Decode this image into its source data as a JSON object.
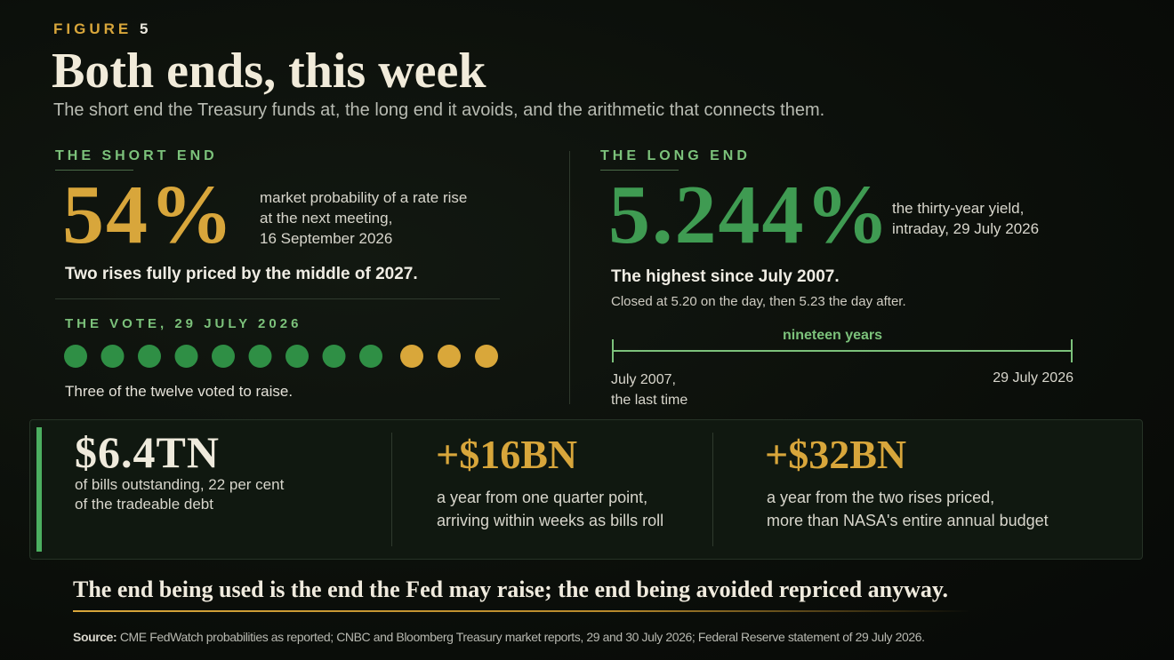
{
  "header": {
    "figure_label": "FIGURE",
    "figure_number": "5",
    "title": "Both ends, this week",
    "subtitle": "The short end the Treasury funds at, the long end it avoids, and the arithmetic that connects them."
  },
  "short_end": {
    "heading": "THE SHORT END",
    "value": "54%",
    "note": [
      "market probability of a rate rise",
      "at the next meeting,",
      "16 September 2026"
    ],
    "summary": "Two rises fully priced by the middle of 2027.",
    "vote": {
      "heading": "THE VOTE, 29 JULY 2026",
      "caption": "Three of the twelve voted to raise."
    }
  },
  "long_end": {
    "heading": "THE LONG END",
    "value": "5.244%",
    "note": [
      "the thirty-year yield,",
      "intraday, 29 July 2026"
    ],
    "summary": "The highest since July 2007.",
    "detail": "Closed at 5.20 on the day, then 5.23 the day after.",
    "timeline": {
      "span": "nineteen years",
      "start": [
        "July 2007,",
        "the last time"
      ],
      "end": "29 July 2026"
    }
  },
  "stats": [
    {
      "value": "$6.4TN",
      "note": [
        "of bills outstanding, 22 per cent",
        "of the tradeable debt"
      ]
    },
    {
      "value": "+$16BN",
      "note": [
        "a year from one quarter point,",
        "arriving within weeks as bills roll"
      ]
    },
    {
      "value": "+$32BN",
      "note": [
        "a year from the two rises priced,",
        "more than NASA's entire annual budget"
      ]
    }
  ],
  "conclusion": "The end being used is the end the Fed may raise; the end being avoided repriced anyway.",
  "source": {
    "label": "Source:",
    "text": "CME FedWatch probabilities as reported; CNBC and Bloomberg Treasury market reports, 29 and 30 July 2026; Federal Reserve statement of 29 July 2026."
  }
}
